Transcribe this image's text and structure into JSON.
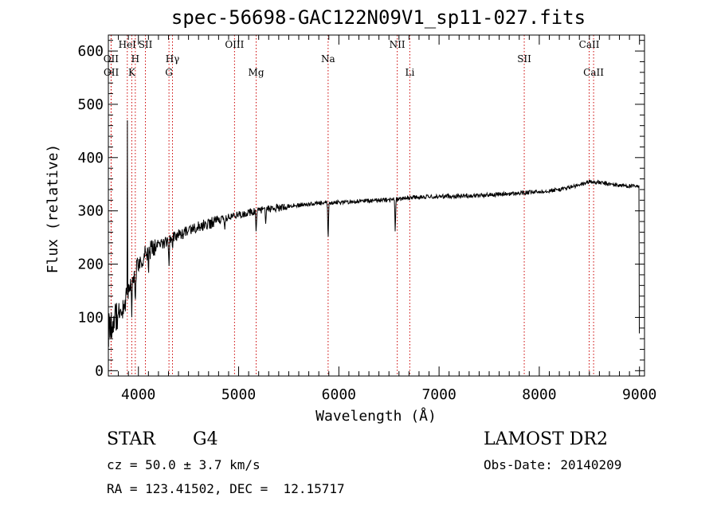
{
  "chart_data": {
    "type": "line",
    "title": "spec-56698-GAC122N09V1_sp11-027.fits",
    "xlabel": "Wavelength (Å)",
    "ylabel": "Flux (relative)",
    "xlim": [
      3700,
      9050
    ],
    "ylim": [
      -10,
      630
    ],
    "x_ticks": [
      "4000",
      "5000",
      "6000",
      "7000",
      "8000",
      "9000"
    ],
    "y_ticks": [
      "0",
      "100",
      "200",
      "300",
      "400",
      "500",
      "600"
    ],
    "grid": false,
    "line_color": "#000000",
    "marker_color": "#cc0000",
    "continuum": {
      "x": [
        3720,
        3760,
        3800,
        3850,
        3900,
        3950,
        4000,
        4050,
        4100,
        4200,
        4300,
        4400,
        4500,
        4600,
        4700,
        4800,
        4900,
        5000,
        5100,
        5200,
        5300,
        5400,
        5500,
        5600,
        5700,
        5800,
        5900,
        6000,
        6100,
        6200,
        6300,
        6400,
        6500,
        6600,
        6700,
        6800,
        6900,
        7000,
        7200,
        7400,
        7600,
        7800,
        8000,
        8200,
        8400,
        8500,
        8600,
        8700,
        8800,
        8880,
        8990
      ],
      "y": [
        85,
        95,
        110,
        125,
        150,
        175,
        200,
        215,
        225,
        235,
        245,
        255,
        262,
        270,
        276,
        282,
        288,
        293,
        297,
        300,
        304,
        306,
        309,
        311,
        312,
        314,
        315,
        316,
        317,
        318,
        319,
        320,
        321,
        322,
        325,
        326,
        326,
        327,
        328,
        329,
        331,
        333,
        336,
        340,
        348,
        355,
        353,
        350,
        348,
        347,
        345
      ]
    },
    "absorption_features": [
      {
        "x": 3934,
        "depth": 60
      },
      {
        "x": 3969,
        "depth": 50
      },
      {
        "x": 4101,
        "depth": 25
      },
      {
        "x": 4305,
        "depth": 55
      },
      {
        "x": 4340,
        "depth": 30
      },
      {
        "x": 4861,
        "depth": 25
      },
      {
        "x": 5175,
        "depth": 45
      },
      {
        "x": 5270,
        "depth": 20
      },
      {
        "x": 5893,
        "depth": 70
      },
      {
        "x": 6563,
        "depth": 60
      }
    ],
    "emission_spikes": [
      {
        "x": 3889,
        "height": 470
      }
    ],
    "spectral_lines": [
      {
        "label": "OII",
        "x": 3727,
        "row": 2
      },
      {
        "label": "OII",
        "x": 3729,
        "row": 3
      },
      {
        "label": "HeI",
        "x": 3889,
        "row": 1
      },
      {
        "label": "H",
        "x": 3969,
        "row": 2
      },
      {
        "label": "K",
        "x": 3934,
        "row": 3
      },
      {
        "label": "SII",
        "x": 4070,
        "row": 1
      },
      {
        "label": "Hγ",
        "x": 4340,
        "row": 2
      },
      {
        "label": "G",
        "x": 4305,
        "row": 3
      },
      {
        "label": "OIII",
        "x": 4959,
        "row": 1
      },
      {
        "label": "Mg",
        "x": 5175,
        "row": 3
      },
      {
        "label": "Na",
        "x": 5893,
        "row": 2
      },
      {
        "label": "NII",
        "x": 6583,
        "row": 1
      },
      {
        "label": "Li",
        "x": 6708,
        "row": 3
      },
      {
        "label": "SII",
        "x": 7850,
        "row": 2
      },
      {
        "label": "CaII",
        "x": 8498,
        "row": 1
      },
      {
        "label": "CaII",
        "x": 8542,
        "row": 3
      }
    ]
  },
  "info": {
    "object_class": "STAR",
    "subclass": "G4",
    "redshift_line": "cz = 50.0 ± 3.7 km/s",
    "coords_line": "RA = 123.41502, DEC =  12.15717",
    "survey": "LAMOST DR2",
    "obs_date_line": "Obs-Date: 20140209"
  }
}
